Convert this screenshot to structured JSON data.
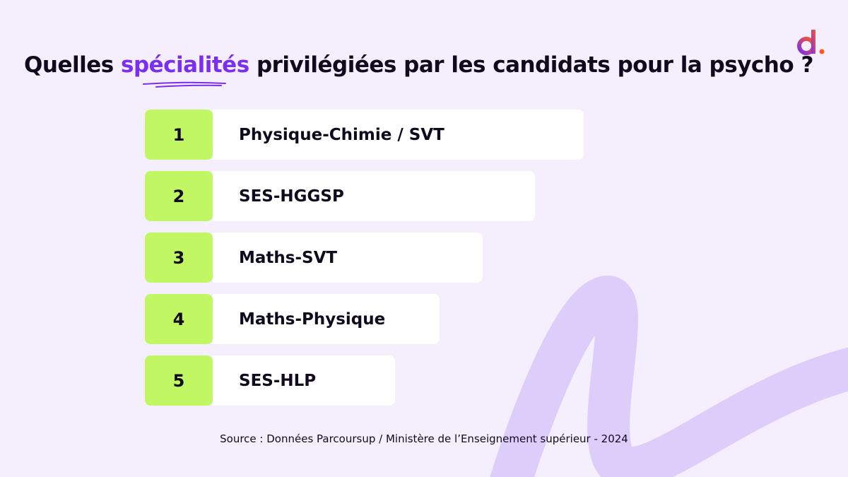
{
  "title": {
    "before": "Quelles ",
    "highlight": "spécialités",
    "after": " privilégiées par les candidats pour la psycho ?"
  },
  "colors": {
    "background": "#f5effd",
    "accent": "#7a2ff0",
    "rank_bg": "#c0f763",
    "swirl": "#dccdfb"
  },
  "logo": {
    "text": "d.",
    "icon": "digischool-logo"
  },
  "ranking": [
    {
      "rank": "1",
      "label": "Physique-Chimie / SVT"
    },
    {
      "rank": "2",
      "label": "SES-HGGSP"
    },
    {
      "rank": "3",
      "label": "Maths-SVT"
    },
    {
      "rank": "4",
      "label": "Maths-Physique"
    },
    {
      "rank": "5",
      "label": "SES-HLP"
    }
  ],
  "source": "Source : Données Parcoursup / Ministère de l’Enseignement supérieur - 2024"
}
